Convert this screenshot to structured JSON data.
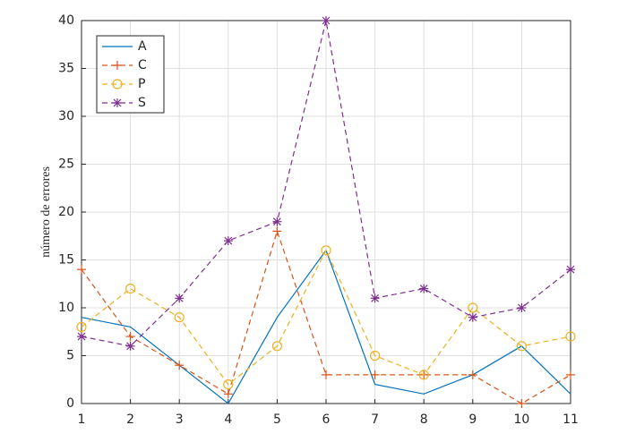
{
  "chart_data": {
    "type": "line",
    "ylabel": "número de errores",
    "x": [
      1,
      2,
      3,
      4,
      5,
      6,
      7,
      8,
      9,
      10,
      11
    ],
    "series": [
      {
        "name": "A",
        "color": "#0072BD",
        "dash": "solid",
        "marker": "none",
        "values": [
          9,
          8,
          4,
          0,
          9,
          16,
          2,
          1,
          3,
          6,
          1
        ]
      },
      {
        "name": "C",
        "color": "#D95319",
        "dash": "dashed",
        "marker": "+",
        "values": [
          14,
          7,
          4,
          1,
          18,
          3,
          3,
          3,
          3,
          0,
          3
        ]
      },
      {
        "name": "P",
        "color": "#EDB120",
        "dash": "dashed",
        "marker": "o",
        "values": [
          8,
          12,
          9,
          2,
          6,
          16,
          5,
          3,
          10,
          6,
          7
        ]
      },
      {
        "name": "S",
        "color": "#7E2F8E",
        "dash": "dashed",
        "marker": "*",
        "values": [
          7,
          6,
          11,
          17,
          19,
          40,
          11,
          12,
          9,
          10,
          14
        ]
      }
    ],
    "xlim": [
      1,
      11
    ],
    "xticks": [
      1,
      2,
      3,
      4,
      5,
      6,
      7,
      8,
      9,
      10,
      11
    ],
    "ylim": [
      0,
      40
    ],
    "yticks": [
      0,
      5,
      10,
      15,
      20,
      25,
      30,
      35,
      40
    ],
    "grid": true,
    "legend": "northwest"
  }
}
